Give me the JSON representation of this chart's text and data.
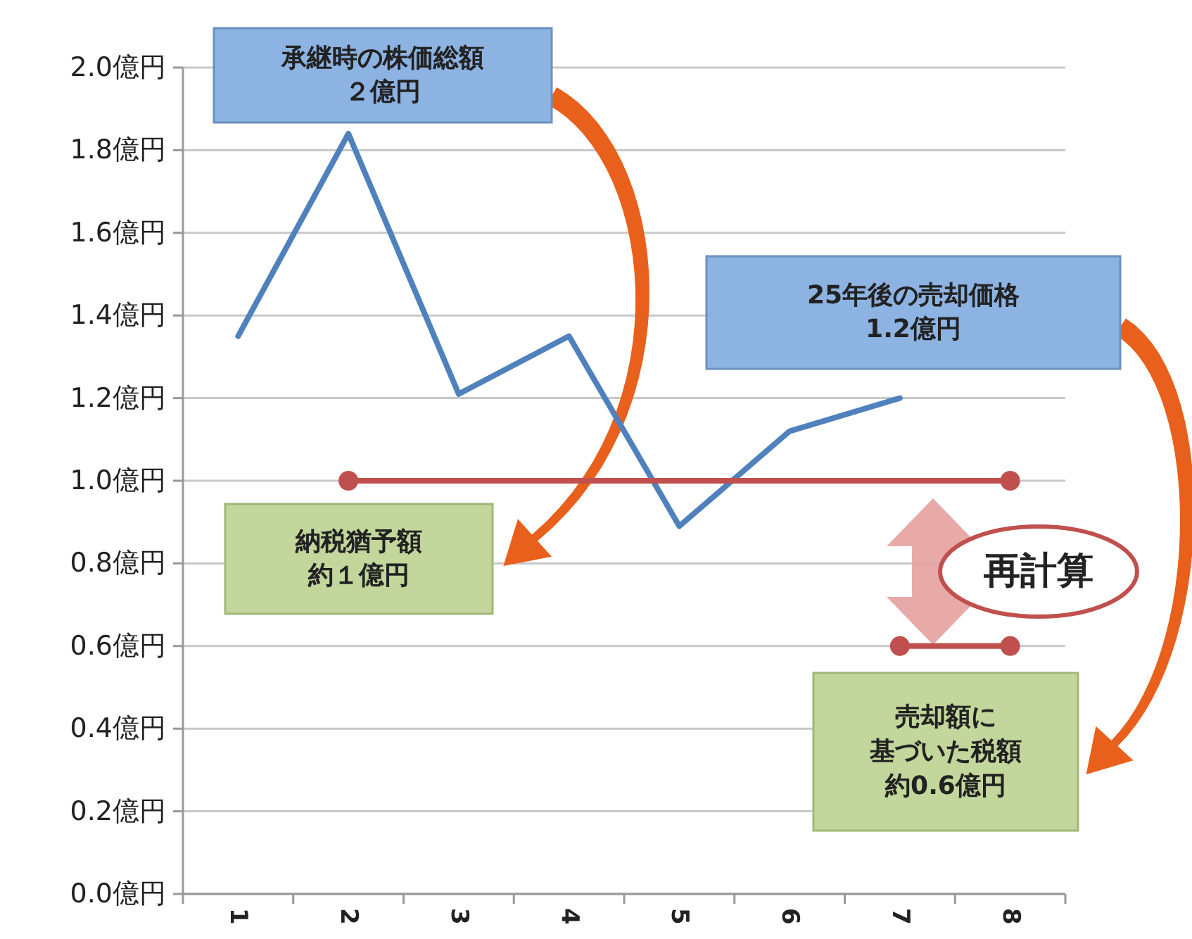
{
  "chart_data": {
    "type": "line",
    "categories": [
      "1",
      "2",
      "3",
      "4",
      "5",
      "6",
      "7",
      "8"
    ],
    "ylim": [
      0,
      2
    ],
    "yticks": [
      {
        "value": 0,
        "label": "0.0億円"
      },
      {
        "value": 0.2,
        "label": "0.2億円"
      },
      {
        "value": 0.4,
        "label": "0.4億円"
      },
      {
        "value": 0.6,
        "label": "0.6億円"
      },
      {
        "value": 0.8,
        "label": "0.8億円"
      },
      {
        "value": 1,
        "label": "1.0億円"
      },
      {
        "value": 1.2,
        "label": "1.2億円"
      },
      {
        "value": 1.4,
        "label": "1.4億円"
      },
      {
        "value": 1.6,
        "label": "1.6億円"
      },
      {
        "value": 1.8,
        "label": "1.8億円"
      },
      {
        "value": 2,
        "label": "2.0億円"
      }
    ],
    "grid": "y",
    "series": [
      {
        "color": "#4f81bd",
        "marker": "none",
        "values": [
          1.35,
          1.84,
          1.21,
          1.35,
          0.89,
          1.12,
          1.2,
          null
        ]
      },
      {
        "color": "#c0504d",
        "marker": "circle",
        "x": [
          "2",
          "8"
        ],
        "values": [
          1,
          1
        ]
      },
      {
        "color": "#c0504d",
        "marker": "circle",
        "x": [
          "7",
          "8"
        ],
        "values": [
          0.6,
          0.6
        ]
      }
    ],
    "annotations": [
      "承継時の株価総額",
      "２億円",
      "25年後の売却価格",
      "1.2億円",
      "納税猶予額",
      "約１億円",
      "再計算",
      "売却額に",
      "基づいた税額",
      "約0.6億円"
    ]
  }
}
